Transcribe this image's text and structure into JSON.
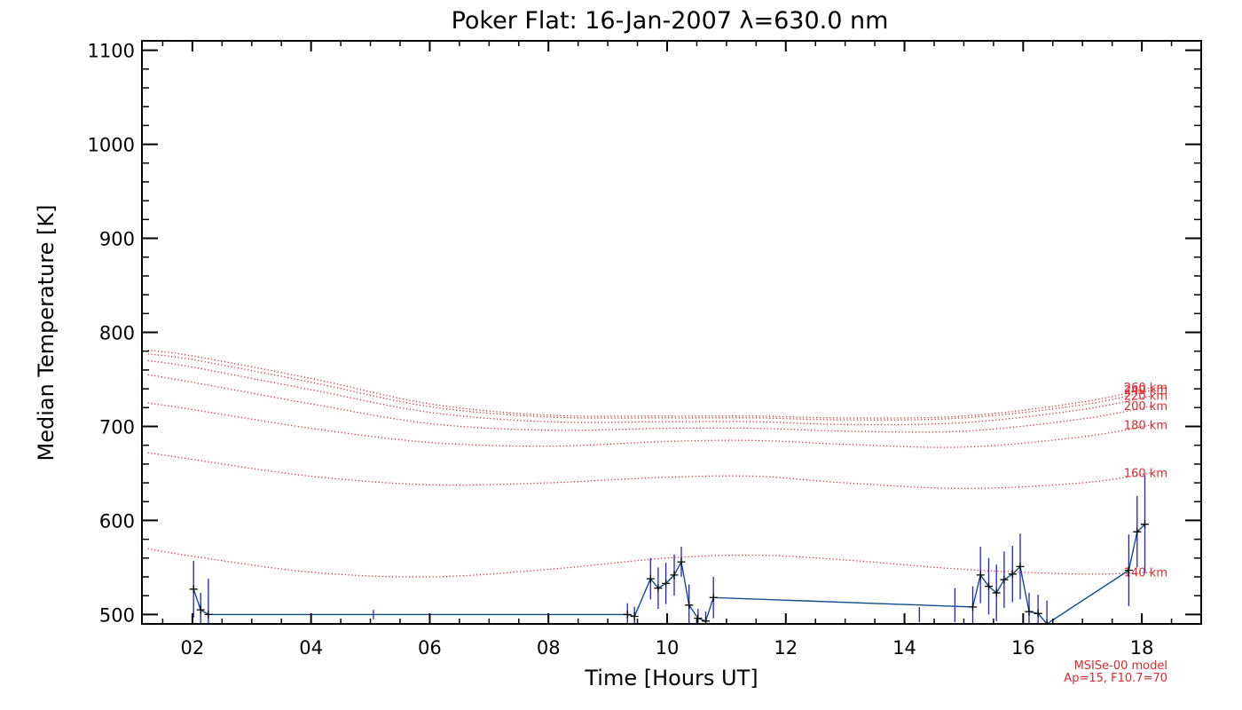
{
  "chart_data": {
    "type": "line",
    "title": "Poker Flat: 16-Jan-2007 λ=630.0 nm",
    "xlabel": "Time [Hours UT]",
    "ylabel": "Median Temperature [K]",
    "xlim": [
      1.15,
      19.0
    ],
    "ylim": [
      490,
      1110
    ],
    "x_ticks": [
      2,
      4,
      6,
      8,
      10,
      12,
      14,
      16,
      18
    ],
    "x_tick_labels": [
      "02",
      "04",
      "06",
      "08",
      "10",
      "12",
      "14",
      "16",
      "18"
    ],
    "y_ticks": [
      500,
      600,
      700,
      800,
      900,
      1000,
      1100
    ],
    "y_tick_labels": [
      "500",
      "600",
      "700",
      "800",
      "900",
      "1000",
      "1100"
    ],
    "model_note": [
      "MSISe-00 model",
      "Ap=15, F10.7=70"
    ],
    "model_curves": [
      {
        "name": "140 km",
        "x": [
          1.25,
          2,
          4,
          6,
          8,
          10,
          11.5,
          13,
          15,
          17,
          18.2
        ],
        "y": [
          570,
          562,
          545,
          540,
          548,
          560,
          563,
          558,
          548,
          543,
          545
        ]
      },
      {
        "name": "160 km",
        "x": [
          1.25,
          2,
          4,
          6,
          8,
          10,
          11.5,
          13,
          15,
          17,
          18.2
        ],
        "y": [
          672,
          665,
          647,
          638,
          640,
          646,
          647,
          640,
          634,
          640,
          651
        ]
      },
      {
        "name": "180 km",
        "x": [
          1.25,
          2,
          4,
          6,
          8,
          10,
          11.5,
          13,
          15,
          17,
          18.2
        ],
        "y": [
          725,
          718,
          698,
          683,
          679,
          684,
          685,
          681,
          678,
          689,
          702
        ]
      },
      {
        "name": "200 km",
        "x": [
          1.25,
          2,
          4,
          6,
          8,
          10,
          11.5,
          13,
          15,
          17,
          18.2
        ],
        "y": [
          755,
          747,
          724,
          703,
          696,
          698,
          698,
          695,
          695,
          708,
          722
        ]
      },
      {
        "name": "220 km",
        "x": [
          1.25,
          2,
          4,
          6,
          8,
          10,
          11.5,
          13,
          15,
          17,
          18.2
        ],
        "y": [
          770,
          763,
          739,
          715,
          705,
          705,
          705,
          702,
          704,
          718,
          733
        ]
      },
      {
        "name": "240 km",
        "x": [
          1.25,
          2,
          4,
          6,
          8,
          10,
          11.5,
          13,
          15,
          17,
          18.2
        ],
        "y": [
          777,
          771,
          747,
          721,
          710,
          709,
          709,
          707,
          709,
          723,
          739
        ]
      },
      {
        "name": "260 km",
        "x": [
          1.25,
          2,
          4,
          6,
          8,
          10,
          11.5,
          13,
          15,
          17,
          18.2
        ],
        "y": [
          781,
          775,
          751,
          724,
          712,
          711,
          711,
          709,
          711,
          726,
          742
        ]
      }
    ],
    "measurements": {
      "name": "Median temperature",
      "points": [
        {
          "x": 2.02,
          "y": 527,
          "err": 30
        },
        {
          "x": 2.14,
          "y": 505,
          "err": 18
        },
        {
          "x": 2.27,
          "y": 500,
          "err": 38
        },
        {
          "x": 9.33,
          "y": 500,
          "err": 12
        },
        {
          "x": 9.45,
          "y": 498,
          "err": 10
        },
        {
          "x": 9.72,
          "y": 538,
          "err": 22
        },
        {
          "x": 9.85,
          "y": 528,
          "err": 22
        },
        {
          "x": 9.98,
          "y": 533,
          "err": 22
        },
        {
          "x": 10.12,
          "y": 542,
          "err": 22
        },
        {
          "x": 10.24,
          "y": 556,
          "err": 16
        },
        {
          "x": 10.37,
          "y": 510,
          "err": 22
        },
        {
          "x": 10.52,
          "y": 496,
          "err": 10
        },
        {
          "x": 10.65,
          "y": 493,
          "err": 10
        },
        {
          "x": 10.78,
          "y": 518,
          "err": 22
        },
        {
          "x": 15.15,
          "y": 508,
          "err": 22
        },
        {
          "x": 15.28,
          "y": 542,
          "err": 30
        },
        {
          "x": 15.42,
          "y": 530,
          "err": 30
        },
        {
          "x": 15.55,
          "y": 523,
          "err": 30
        },
        {
          "x": 15.68,
          "y": 537,
          "err": 30
        },
        {
          "x": 15.82,
          "y": 543,
          "err": 30
        },
        {
          "x": 15.95,
          "y": 551,
          "err": 35
        },
        {
          "x": 16.1,
          "y": 503,
          "err": 20
        },
        {
          "x": 16.25,
          "y": 501,
          "err": 20
        },
        {
          "x": 16.4,
          "y": 490,
          "err": 25
        },
        {
          "x": 17.78,
          "y": 547,
          "err": 38
        },
        {
          "x": 17.92,
          "y": 588,
          "err": 38
        },
        {
          "x": 18.05,
          "y": 596,
          "err": 52
        }
      ],
      "extra_error_bars": [
        {
          "x": 5.05,
          "y": 500,
          "err": 5
        },
        {
          "x": 14.25,
          "y": 500,
          "err": 8
        },
        {
          "x": 14.85,
          "y": 510,
          "err": 18
        }
      ]
    }
  },
  "colors": {
    "axes": "#000000",
    "model": "#e0282e",
    "error_bars": "#1f1fd6",
    "line": "#104e8b",
    "markers": "#000000"
  }
}
